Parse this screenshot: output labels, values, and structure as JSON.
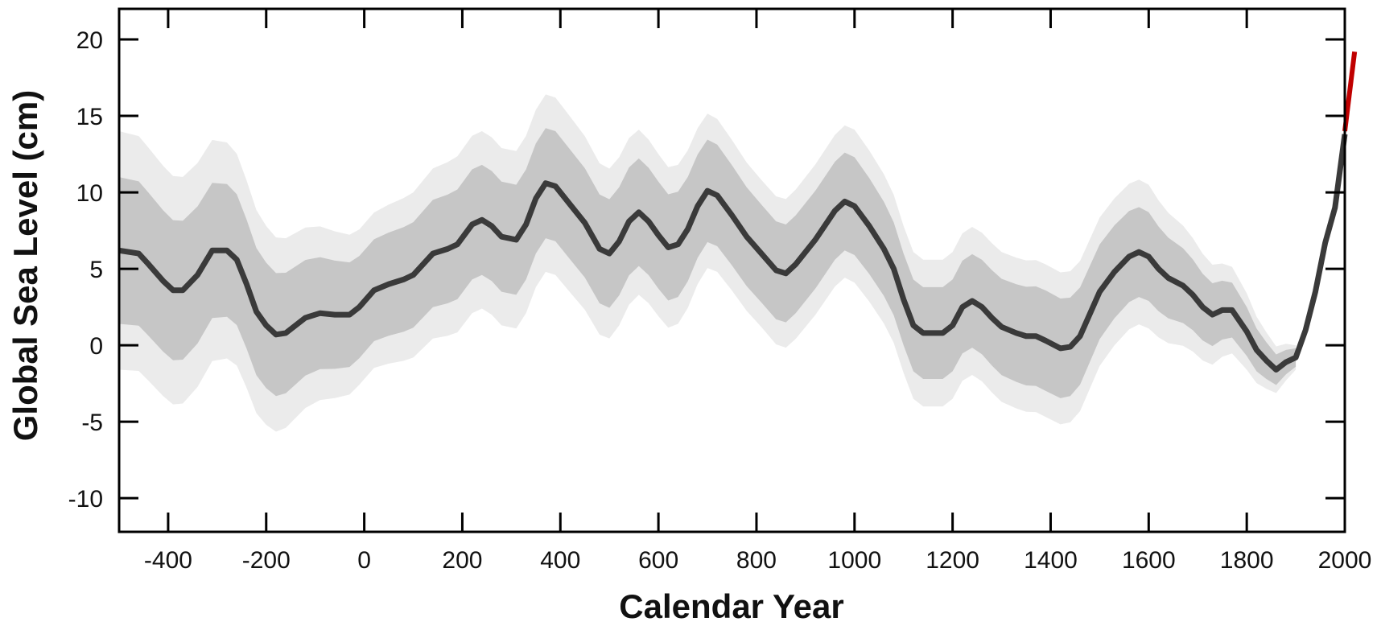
{
  "chart_data": {
    "type": "line",
    "title": "",
    "xlabel": "Calendar Year",
    "ylabel": "Global Sea Level (cm)",
    "xlim": [
      -500,
      2000
    ],
    "ylim": [
      -12.2,
      22
    ],
    "grid": false,
    "x_ticks": [
      -400,
      -200,
      0,
      200,
      400,
      600,
      800,
      1000,
      1200,
      1400,
      1600,
      1800,
      2000
    ],
    "x_tick_labels": [
      "-400",
      "-200",
      "0",
      "200",
      "400",
      "600",
      "800",
      "1000",
      "1200",
      "1400",
      "1600",
      "1800",
      "2000"
    ],
    "y_ticks": [
      -10,
      -5,
      0,
      5,
      10,
      15,
      20
    ],
    "y_tick_labels": [
      "-10",
      "-5",
      "0",
      "5",
      "10",
      "15",
      "20"
    ],
    "colors": {
      "mean_line": "#3a3a3a",
      "inner_band": "#c6c6c6",
      "outer_band": "#ebebeb",
      "observed": "#c00000",
      "axis": "#000000"
    },
    "series": [
      {
        "role": "reconstruction mean",
        "x": [
          -500,
          -460,
          -440,
          -410,
          -390,
          -370,
          -340,
          -310,
          -280,
          -260,
          -240,
          -220,
          -200,
          -180,
          -160,
          -120,
          -90,
          -60,
          -30,
          -10,
          20,
          50,
          80,
          100,
          140,
          170,
          190,
          220,
          240,
          260,
          280,
          310,
          330,
          350,
          370,
          390,
          420,
          450,
          480,
          500,
          520,
          540,
          560,
          580,
          600,
          620,
          640,
          660,
          680,
          700,
          720,
          750,
          780,
          810,
          840,
          860,
          880,
          920,
          960,
          980,
          1000,
          1030,
          1060,
          1080,
          1100,
          1120,
          1140,
          1160,
          1180,
          1200,
          1220,
          1240,
          1260,
          1280,
          1300,
          1330,
          1350,
          1370,
          1390,
          1420,
          1440,
          1460,
          1500,
          1530,
          1560,
          1580,
          1600,
          1620,
          1640,
          1670,
          1690,
          1710,
          1730,
          1750,
          1770,
          1800,
          1820,
          1840,
          1860,
          1880,
          1900,
          1920,
          1940,
          1960,
          1980,
          2000
        ],
        "y": [
          6.2,
          6.0,
          5.3,
          4.2,
          3.6,
          3.6,
          4.6,
          6.2,
          6.2,
          5.6,
          4.0,
          2.2,
          1.3,
          0.7,
          0.8,
          1.8,
          2.1,
          2.0,
          2.0,
          2.5,
          3.6,
          4.0,
          4.3,
          4.6,
          6.0,
          6.3,
          6.6,
          7.9,
          8.2,
          7.8,
          7.1,
          6.9,
          7.9,
          9.6,
          10.6,
          10.4,
          9.2,
          8.0,
          6.3,
          6.0,
          6.8,
          8.1,
          8.7,
          8.1,
          7.2,
          6.4,
          6.6,
          7.6,
          9.1,
          10.1,
          9.8,
          8.5,
          7.1,
          6.0,
          4.9,
          4.7,
          5.3,
          6.9,
          8.8,
          9.4,
          9.1,
          7.8,
          6.3,
          5.0,
          3.0,
          1.3,
          0.8,
          0.8,
          0.8,
          1.3,
          2.5,
          2.9,
          2.5,
          1.8,
          1.2,
          0.8,
          0.6,
          0.6,
          0.3,
          -0.2,
          -0.1,
          0.6,
          3.5,
          4.8,
          5.8,
          6.1,
          5.8,
          5.0,
          4.4,
          3.9,
          3.3,
          2.5,
          2.0,
          2.3,
          2.3,
          0.9,
          -0.3,
          -1.0,
          -1.6,
          -1.1,
          -0.8,
          1.0,
          3.5,
          6.7,
          9.0,
          13.8
        ]
      },
      {
        "role": "observed",
        "x": [
          2000,
          2020
        ],
        "y": [
          14.0,
          19.2
        ]
      }
    ],
    "uncertainty_bands": {
      "inner": {
        "x": [
          -500,
          -300,
          -200,
          0,
          200,
          400,
          600,
          800,
          1000,
          1100,
          1200,
          1400,
          1600,
          1800,
          1880,
          1900,
          1910
        ],
        "half_width": [
          4.8,
          4.4,
          4.1,
          3.3,
          3.6,
          3.6,
          3.5,
          3.2,
          3.2,
          3.0,
          3.0,
          3.3,
          2.9,
          1.6,
          0.8,
          0.6,
          0
        ]
      },
      "outer": {
        "x": [
          -500,
          -300,
          -200,
          0,
          200,
          400,
          600,
          800,
          1000,
          1100,
          1200,
          1400,
          1600,
          1800,
          1880,
          1900,
          1910
        ],
        "half_width": [
          7.8,
          7.2,
          6.5,
          5.0,
          5.8,
          5.8,
          5.3,
          4.8,
          5.0,
          4.8,
          4.8,
          5.0,
          4.7,
          2.5,
          1.2,
          0.8,
          0
        ]
      }
    }
  }
}
